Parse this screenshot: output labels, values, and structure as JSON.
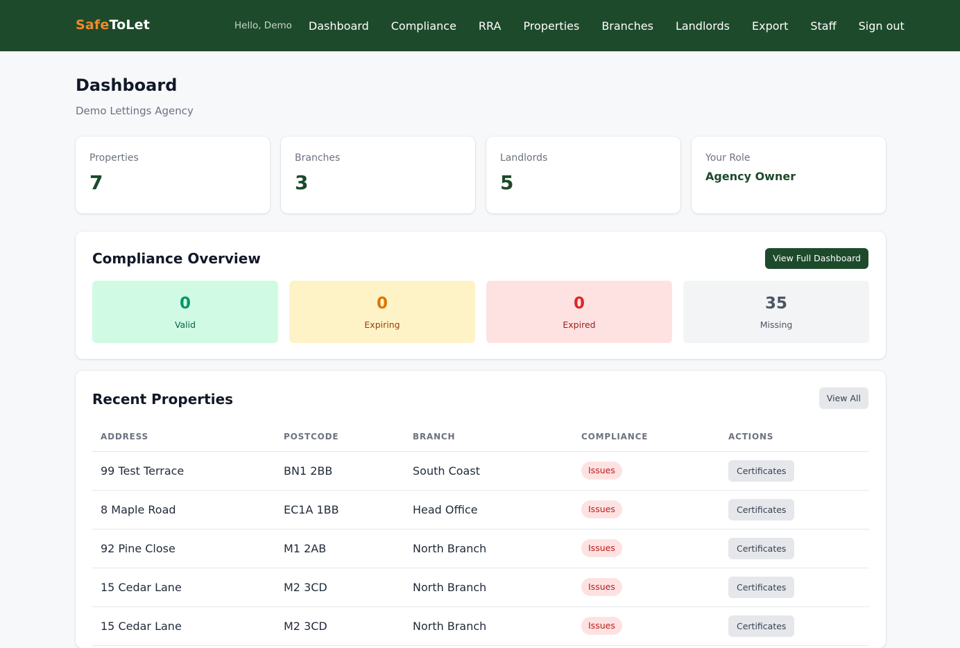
{
  "brand": {
    "part1": "Safe",
    "part2": "ToLet"
  },
  "nav": {
    "greeting": "Hello, Demo",
    "links": [
      "Dashboard",
      "Compliance",
      "RRA",
      "Properties",
      "Branches",
      "Landlords",
      "Export",
      "Staff",
      "Sign out"
    ]
  },
  "page": {
    "title": "Dashboard",
    "subtitle": "Demo Lettings Agency"
  },
  "stats": [
    {
      "label": "Properties",
      "value": "7"
    },
    {
      "label": "Branches",
      "value": "3"
    },
    {
      "label": "Landlords",
      "value": "5"
    },
    {
      "label": "Your Role",
      "value": "Agency Owner"
    }
  ],
  "compliance": {
    "title": "Compliance Overview",
    "button": "View Full Dashboard",
    "items": [
      {
        "value": "0",
        "label": "Valid"
      },
      {
        "value": "0",
        "label": "Expiring"
      },
      {
        "value": "0",
        "label": "Expired"
      },
      {
        "value": "35",
        "label": "Missing"
      }
    ]
  },
  "recent": {
    "title": "Recent Properties",
    "button": "View All",
    "headers": [
      "Address",
      "Postcode",
      "Branch",
      "Compliance",
      "Actions"
    ],
    "rows": [
      {
        "address": "99 Test Terrace",
        "postcode": "BN1 2BB",
        "branch": "South Coast",
        "compliance": "Issues",
        "action": "Certificates"
      },
      {
        "address": "8 Maple Road",
        "postcode": "EC1A 1BB",
        "branch": "Head Office",
        "compliance": "Issues",
        "action": "Certificates"
      },
      {
        "address": "92 Pine Close",
        "postcode": "M1 2AB",
        "branch": "North Branch",
        "compliance": "Issues",
        "action": "Certificates"
      },
      {
        "address": "15 Cedar Lane",
        "postcode": "M2 3CD",
        "branch": "North Branch",
        "compliance": "Issues",
        "action": "Certificates"
      },
      {
        "address": "15 Cedar Lane",
        "postcode": "M2 3CD",
        "branch": "North Branch",
        "compliance": "Issues",
        "action": "Certificates"
      }
    ]
  },
  "colors": {
    "brand_green": "#1d4a2b",
    "brand_orange": "#f08a2c"
  }
}
